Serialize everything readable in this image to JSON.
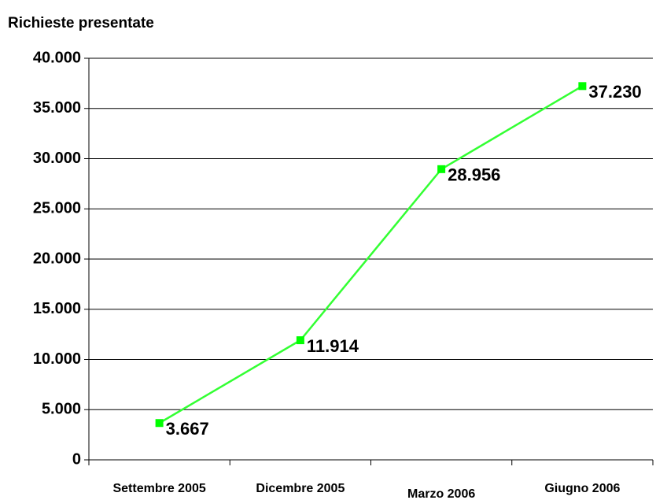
{
  "chart_data": {
    "type": "line",
    "title": "Richieste presentate",
    "categories": [
      "Settembre 2005",
      "Dicembre 2005",
      "Marzo 2006",
      "Giugno 2006"
    ],
    "series": [
      {
        "name": "Richieste presentate",
        "color": "#33ff33",
        "values": [
          3667,
          11914,
          28956,
          37230
        ],
        "value_labels": [
          "3.667",
          "11.914",
          "28.956",
          "37.230"
        ]
      }
    ],
    "ylim": [
      0,
      40000
    ],
    "yticks": [
      {
        "value": 0,
        "label": "0"
      },
      {
        "value": 5000,
        "label": "5.000"
      },
      {
        "value": 10000,
        "label": "10.000"
      },
      {
        "value": 15000,
        "label": "15.000"
      },
      {
        "value": 20000,
        "label": "20.000"
      },
      {
        "value": 25000,
        "label": "25.000"
      },
      {
        "value": 30000,
        "label": "30.000"
      },
      {
        "value": 35000,
        "label": "35.000"
      },
      {
        "value": 40000,
        "label": "40.000"
      }
    ],
    "grid": true
  }
}
